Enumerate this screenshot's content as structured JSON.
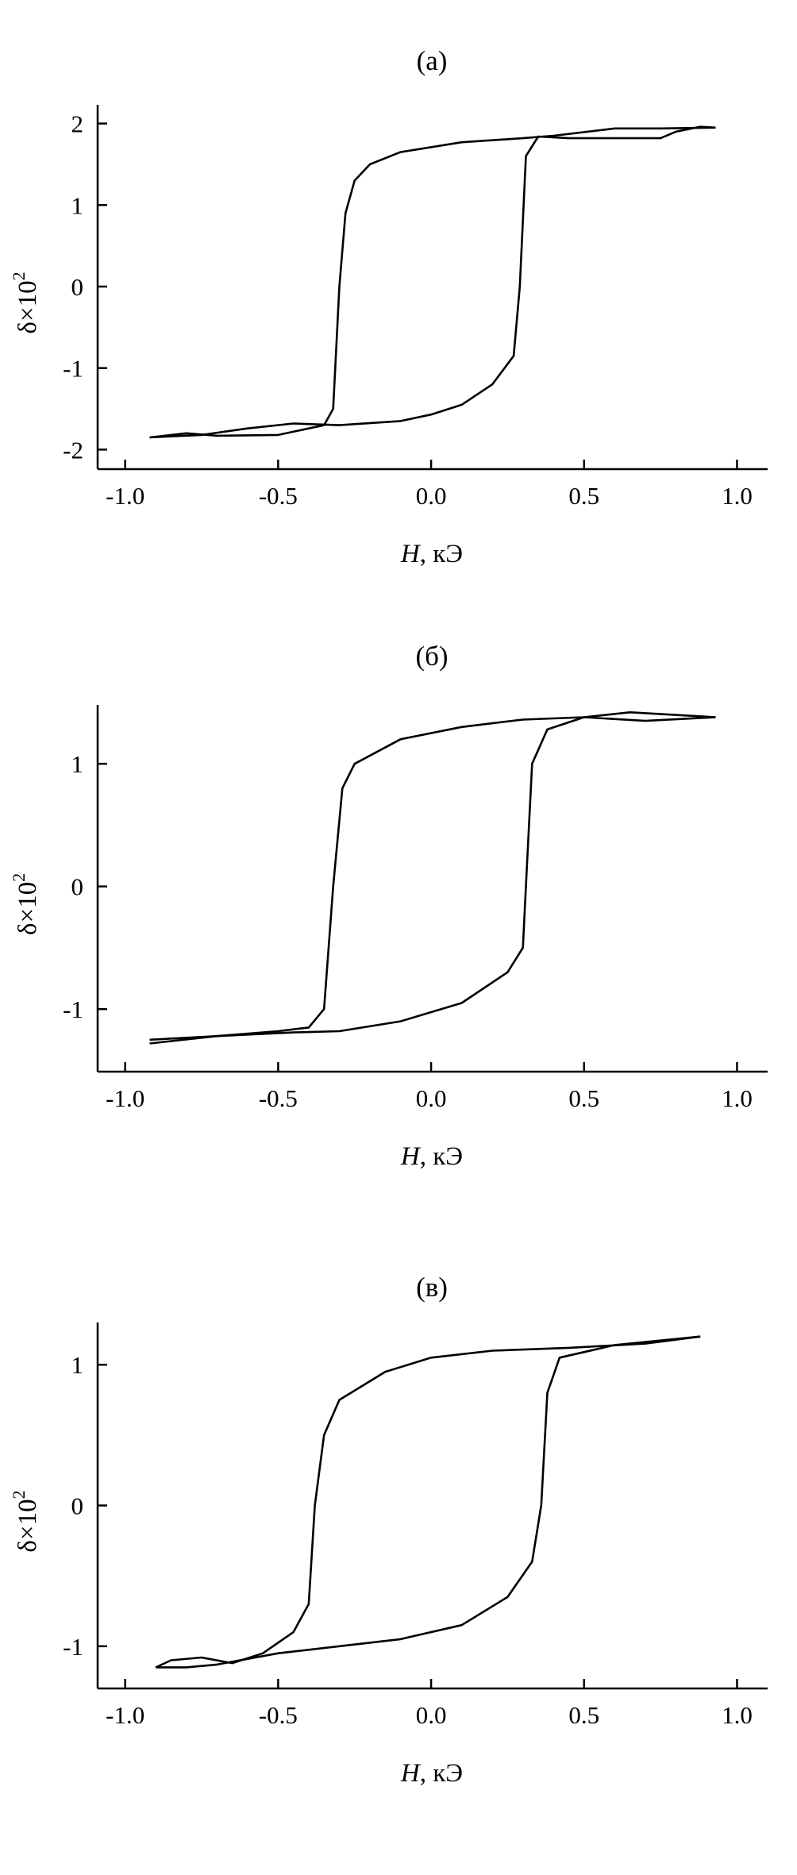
{
  "chart_data": [
    {
      "type": "line",
      "title": "(a)",
      "xlabel_italic": "H",
      "xlabel_rest": ", кЭ",
      "ylabel": "δ×10",
      "ylabel_sup": "2",
      "xlim": [
        -1.09,
        1.1
      ],
      "ylim": [
        -2.24,
        2.23
      ],
      "xticks": [
        -1.0,
        -0.5,
        0.0,
        0.5,
        1.0
      ],
      "xtick_labels": [
        "-1.0",
        "-0.5",
        "0.0",
        "0.5",
        "1.0"
      ],
      "yticks": [
        -2,
        -1,
        0,
        1,
        2
      ],
      "ytick_labels": [
        "-2",
        "-1",
        "0",
        "1",
        "2"
      ],
      "grid": false,
      "color": "#000000",
      "series": [
        {
          "x": [
            0.93,
            0.75,
            0.6,
            0.4,
            0.3,
            0.1,
            -0.1,
            -0.2,
            -0.25,
            -0.28,
            -0.3,
            -0.32,
            -0.35,
            -0.5,
            -0.7,
            -0.8,
            -0.92
          ],
          "y": [
            1.95,
            1.94,
            1.94,
            1.85,
            1.82,
            1.77,
            1.65,
            1.5,
            1.3,
            0.9,
            0,
            -1.5,
            -1.7,
            -1.82,
            -1.83,
            -1.8,
            -1.85
          ]
        },
        {
          "x": [
            -0.92,
            -0.75,
            -0.6,
            -0.45,
            -0.3,
            -0.1,
            0.0,
            0.1,
            0.2,
            0.27,
            0.29,
            0.31,
            0.35,
            0.45,
            0.75,
            0.8,
            0.88,
            0.93
          ],
          "y": [
            -1.85,
            -1.82,
            -1.74,
            -1.68,
            -1.7,
            -1.65,
            -1.57,
            -1.45,
            -1.2,
            -0.85,
            0,
            1.6,
            1.84,
            1.82,
            1.82,
            1.9,
            1.96,
            1.95
          ]
        }
      ]
    },
    {
      "type": "line",
      "title": "(б)",
      "xlabel_italic": "H",
      "xlabel_rest": ", кЭ",
      "ylabel": "δ×10",
      "ylabel_sup": "2",
      "xlim": [
        -1.09,
        1.1
      ],
      "ylim": [
        -1.51,
        1.48
      ],
      "xticks": [
        -1.0,
        -0.5,
        0.0,
        0.5,
        1.0
      ],
      "xtick_labels": [
        "-1.0",
        "-0.5",
        "0.0",
        "0.5",
        "1.0"
      ],
      "yticks": [
        -1,
        0,
        1
      ],
      "ytick_labels": [
        "-1",
        "0",
        "1"
      ],
      "grid": false,
      "color": "#000000",
      "series": [
        {
          "x": [
            0.93,
            0.65,
            0.5,
            0.3,
            0.1,
            -0.1,
            -0.25,
            -0.29,
            -0.32,
            -0.35,
            -0.4,
            -0.5,
            -0.7,
            -0.92
          ],
          "y": [
            1.38,
            1.42,
            1.38,
            1.36,
            1.3,
            1.2,
            1.0,
            0.8,
            0,
            -1.0,
            -1.15,
            -1.18,
            -1.22,
            -1.28
          ]
        },
        {
          "x": [
            -0.92,
            -0.7,
            -0.45,
            -0.3,
            -0.1,
            0.1,
            0.25,
            0.3,
            0.31,
            0.33,
            0.38,
            0.5,
            0.7,
            0.93
          ],
          "y": [
            -1.25,
            -1.22,
            -1.19,
            -1.18,
            -1.1,
            -0.95,
            -0.7,
            -0.5,
            0,
            1.0,
            1.28,
            1.38,
            1.35,
            1.38
          ]
        }
      ]
    },
    {
      "type": "line",
      "title": "(в)",
      "xlabel_italic": "H",
      "xlabel_rest": ", кЭ",
      "ylabel": "δ×10",
      "ylabel_sup": "2",
      "xlim": [
        -1.09,
        1.1
      ],
      "ylim": [
        -1.3,
        1.3
      ],
      "xticks": [
        -1.0,
        -0.5,
        0.0,
        0.5,
        1.0
      ],
      "xtick_labels": [
        "-1.0",
        "-0.5",
        "0.0",
        "0.5",
        "1.0"
      ],
      "yticks": [
        -1,
        0,
        1
      ],
      "ytick_labels": [
        "-1",
        "0",
        "1"
      ],
      "grid": false,
      "color": "#000000",
      "series": [
        {
          "x": [
            0.88,
            0.7,
            0.45,
            0.2,
            0.0,
            -0.15,
            -0.3,
            -0.35,
            -0.38,
            -0.4,
            -0.45,
            -0.55,
            -0.65,
            -0.75,
            -0.85,
            -0.9
          ],
          "y": [
            1.2,
            1.15,
            1.12,
            1.1,
            1.05,
            0.95,
            0.75,
            0.5,
            0,
            -0.7,
            -0.9,
            -1.05,
            -1.12,
            -1.08,
            -1.1,
            -1.15
          ]
        },
        {
          "x": [
            -0.9,
            -0.8,
            -0.7,
            -0.5,
            -0.3,
            -0.1,
            0.1,
            0.25,
            0.33,
            0.36,
            0.38,
            0.42,
            0.6,
            0.88
          ],
          "y": [
            -1.15,
            -1.15,
            -1.13,
            -1.05,
            -1.0,
            -0.95,
            -0.85,
            -0.65,
            -0.4,
            0,
            0.8,
            1.05,
            1.14,
            1.2
          ]
        }
      ]
    }
  ]
}
